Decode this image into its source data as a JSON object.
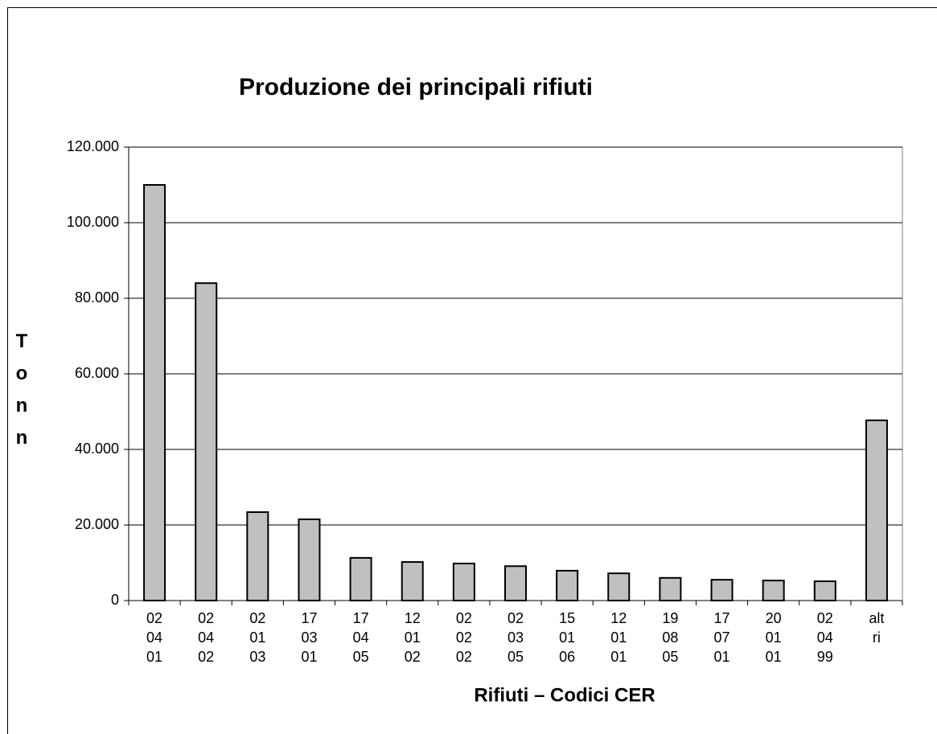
{
  "chart_data": {
    "type": "bar",
    "title": "Produzione dei principali rifiuti",
    "x_label": "Rifiuti – Codici CER",
    "y_label": "Tonn",
    "categories": [
      [
        "02",
        "04",
        "01"
      ],
      [
        "02",
        "04",
        "02"
      ],
      [
        "02",
        "01",
        "03"
      ],
      [
        "17",
        "03",
        "01"
      ],
      [
        "17",
        "04",
        "05"
      ],
      [
        "12",
        "01",
        "02"
      ],
      [
        "02",
        "02",
        "02"
      ],
      [
        "02",
        "03",
        "05"
      ],
      [
        "15",
        "01",
        "06"
      ],
      [
        "12",
        "01",
        "01"
      ],
      [
        "19",
        "08",
        "05"
      ],
      [
        "17",
        "07",
        "01"
      ],
      [
        "20",
        "01",
        "01"
      ],
      [
        "02",
        "04",
        "99"
      ],
      [
        "alt",
        "ri"
      ]
    ],
    "values": [
      110000,
      84000,
      23400,
      21500,
      11300,
      10200,
      9800,
      9100,
      7900,
      7200,
      6000,
      5500,
      5300,
      5100,
      47700
    ],
    "color": "#c0c0c0",
    "ylim": [
      0,
      120000
    ],
    "yticks": [
      0,
      {
        "value": 20000,
        "label": "20.000"
      },
      {
        "value": 40000,
        "label": "40.000"
      },
      {
        "value": 60000,
        "label": "60.000"
      },
      {
        "value": 80000,
        "label": "80.000"
      },
      {
        "value": 100000,
        "label": "100.000"
      },
      {
        "value": 120000,
        "label": "120.000"
      }
    ],
    "grid": true
  }
}
